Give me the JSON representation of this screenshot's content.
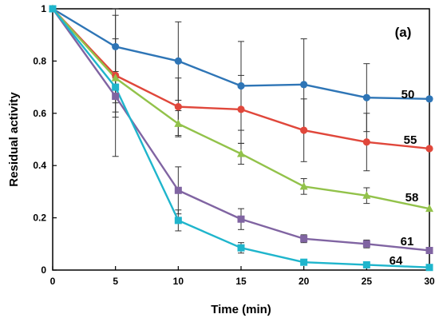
{
  "chart_data": {
    "type": "line",
    "panel_label": "(a)",
    "xlabel": "Time (min)",
    "ylabel": "Residual activity",
    "xlim": [
      0,
      30
    ],
    "ylim": [
      0,
      1
    ],
    "xticks": [
      0,
      5,
      10,
      15,
      20,
      25,
      30
    ],
    "yticks": [
      0,
      0.2,
      0.4,
      0.6,
      0.8,
      1
    ],
    "ytick_labels": [
      "0",
      "0.2",
      "0.4",
      "0.6",
      "0.8",
      "1"
    ],
    "xtick_labels": [
      "0",
      "5",
      "10",
      "15",
      "20",
      "25",
      "30"
    ],
    "grid": false,
    "x": [
      0,
      5,
      10,
      15,
      20,
      25,
      30
    ],
    "series": [
      {
        "name": "50",
        "color": "#2E75B6",
        "marker": "circle",
        "values": [
          1.0,
          0.855,
          0.8,
          0.705,
          0.71,
          0.66,
          0.655
        ],
        "error": [
          0,
          0.12,
          0.15,
          0.17,
          0.175,
          0.13,
          0
        ]
      },
      {
        "name": "55",
        "color": "#E0473B",
        "marker": "circle",
        "values": [
          1.0,
          0.745,
          0.625,
          0.615,
          0.535,
          0.49,
          0.465
        ],
        "error": [
          0,
          0.14,
          0.11,
          0.13,
          0.12,
          0.11,
          0
        ]
      },
      {
        "name": "58",
        "color": "#92C24A",
        "marker": "triangle",
        "values": [
          1.0,
          0.735,
          0.56,
          0.445,
          0.32,
          0.285,
          0.235
        ],
        "error": [
          0,
          0.3,
          0.05,
          0.04,
          0.03,
          0.03,
          0
        ]
      },
      {
        "name": "61",
        "color": "#8064A2",
        "marker": "square",
        "values": [
          1.0,
          0.665,
          0.305,
          0.195,
          0.12,
          0.1,
          0.075
        ],
        "error": [
          0,
          0.08,
          0.09,
          0.04,
          0.015,
          0.015,
          0
        ]
      },
      {
        "name": "64",
        "color": "#1FB5CC",
        "marker": "square",
        "values": [
          1.0,
          0.7,
          0.19,
          0.085,
          0.03,
          0.02,
          0.01
        ],
        "error": [
          0,
          0.06,
          0.04,
          0.02,
          0.005,
          0.005,
          0
        ]
      }
    ]
  }
}
